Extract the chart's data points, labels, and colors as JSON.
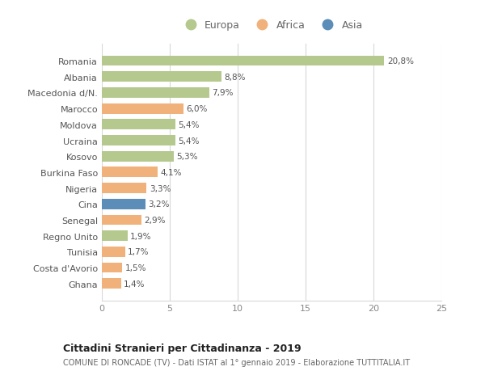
{
  "countries": [
    "Romania",
    "Albania",
    "Macedonia d/N.",
    "Marocco",
    "Moldova",
    "Ucraina",
    "Kosovo",
    "Burkina Faso",
    "Nigeria",
    "Cina",
    "Senegal",
    "Regno Unito",
    "Tunisia",
    "Costa d'Avorio",
    "Ghana"
  ],
  "values": [
    20.8,
    8.8,
    7.9,
    6.0,
    5.4,
    5.4,
    5.3,
    4.1,
    3.3,
    3.2,
    2.9,
    1.9,
    1.7,
    1.5,
    1.4
  ],
  "labels": [
    "20,8%",
    "8,8%",
    "7,9%",
    "6,0%",
    "5,4%",
    "5,4%",
    "5,3%",
    "4,1%",
    "3,3%",
    "3,2%",
    "2,9%",
    "1,9%",
    "1,7%",
    "1,5%",
    "1,4%"
  ],
  "continents": [
    "Europa",
    "Europa",
    "Europa",
    "Africa",
    "Europa",
    "Europa",
    "Europa",
    "Africa",
    "Africa",
    "Asia",
    "Africa",
    "Europa",
    "Africa",
    "Africa",
    "Africa"
  ],
  "colors": {
    "Europa": "#b5c98e",
    "Africa": "#f0b27a",
    "Asia": "#5b8db8"
  },
  "title": "Cittadini Stranieri per Cittadinanza - 2019",
  "subtitle": "COMUNE DI RONCADE (TV) - Dati ISTAT al 1° gennaio 2019 - Elaborazione TUTTITALIA.IT",
  "xlim": [
    0,
    25
  ],
  "xticks": [
    0,
    5,
    10,
    15,
    20,
    25
  ],
  "background_color": "#ffffff",
  "grid_color": "#d8d8d8",
  "bar_height": 0.65
}
